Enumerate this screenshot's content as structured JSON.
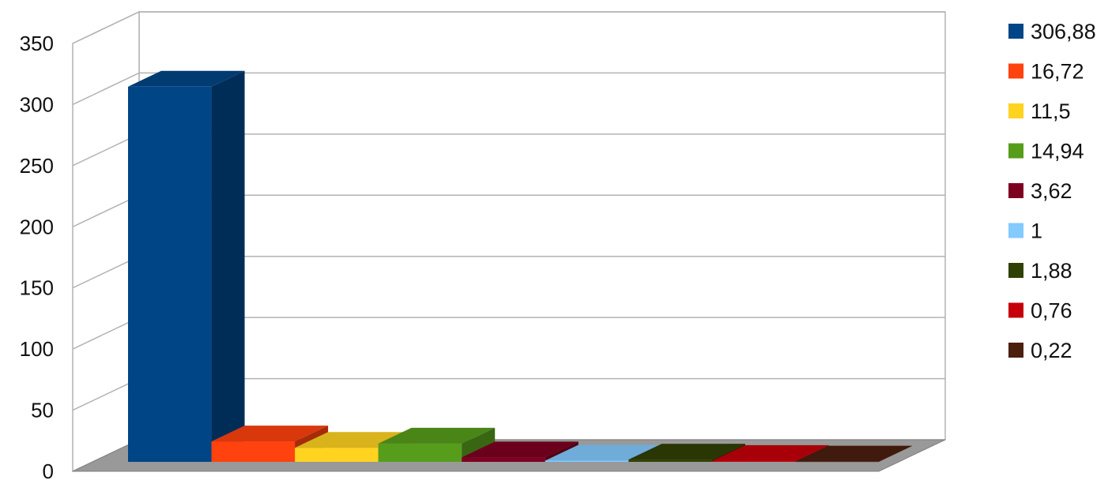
{
  "chart_data": {
    "type": "bar",
    "style": "3d",
    "title": "",
    "xlabel": "",
    "ylabel": "",
    "ylim": [
      0,
      350
    ],
    "yticks": [
      0,
      50,
      100,
      150,
      200,
      250,
      300,
      350
    ],
    "grid": true,
    "legend_position": "right",
    "series": [
      {
        "name": "306,88",
        "value": 306.88,
        "color": "#004586"
      },
      {
        "name": "16,72",
        "value": 16.72,
        "color": "#ff420e"
      },
      {
        "name": "11,5",
        "value": 11.5,
        "color": "#ffd320"
      },
      {
        "name": "14,94",
        "value": 14.94,
        "color": "#579d1c"
      },
      {
        "name": "3,62",
        "value": 3.62,
        "color": "#7e0021"
      },
      {
        "name": "1",
        "value": 1,
        "color": "#83caff"
      },
      {
        "name": "1,88",
        "value": 1.88,
        "color": "#314004"
      },
      {
        "name": "0,76",
        "value": 0.76,
        "color": "#c5000b"
      },
      {
        "name": "0,22",
        "value": 0.22,
        "color": "#4b1f0e"
      }
    ]
  }
}
